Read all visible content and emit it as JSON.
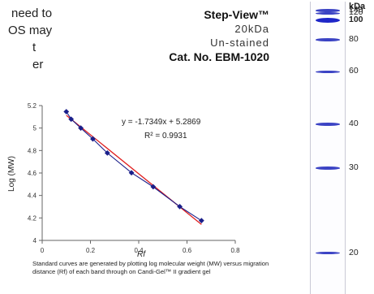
{
  "intro_lines": [
    "need to",
    "OS may",
    "t",
    "er"
  ],
  "product": {
    "name": "Step-View™",
    "size": "20kDa",
    "stain": "Un-stained",
    "catalog": "Cat. No. EBM-1020"
  },
  "chart_data": {
    "type": "scatter",
    "xlabel": "Rf",
    "ylabel": "Log (MW)",
    "xlim": [
      0,
      0.8
    ],
    "ylim": [
      4,
      5.2
    ],
    "xticks": [
      "0",
      "0.2",
      "0.4",
      "0.6",
      "0.8"
    ],
    "yticks": [
      "4",
      "4.2",
      "4.4",
      "4.6",
      "4.8",
      "5",
      "5.2"
    ],
    "equation": "y = -1.7349x + 5.2869",
    "r_squared": "R² = 0.9931",
    "series": [
      {
        "marker_color": "#1a1f8a",
        "points": [
          {
            "x": 0.1,
            "y": 5.146
          },
          {
            "x": 0.12,
            "y": 5.079
          },
          {
            "x": 0.16,
            "y": 5.0
          },
          {
            "x": 0.21,
            "y": 4.903
          },
          {
            "x": 0.27,
            "y": 4.778
          },
          {
            "x": 0.37,
            "y": 4.602
          },
          {
            "x": 0.46,
            "y": 4.477
          },
          {
            "x": 0.57,
            "y": 4.301
          },
          {
            "x": 0.66,
            "y": 4.176
          }
        ]
      }
    ],
    "trendline": {
      "slope": -1.7349,
      "intercept": 5.2869,
      "x_range": [
        0.1,
        0.66
      ],
      "color": "#e02020"
    }
  },
  "caption": "Standard curves are generated by plotting log molecular weight (MW) versus migration distance (Rf) of each band through on Candi-Gel™ II gradient gel",
  "gel": {
    "unit": "kDa",
    "bands": [
      {
        "mw": "140",
        "y": 0.03
      },
      {
        "mw": "120",
        "y": 0.04
      },
      {
        "mw": "100",
        "y": 0.065,
        "bold": true
      },
      {
        "mw": "80",
        "y": 0.13
      },
      {
        "mw": "60",
        "y": 0.24
      },
      {
        "mw": "40",
        "y": 0.42
      },
      {
        "mw": "30",
        "y": 0.57
      },
      {
        "mw": "20",
        "y": 0.86
      }
    ]
  }
}
